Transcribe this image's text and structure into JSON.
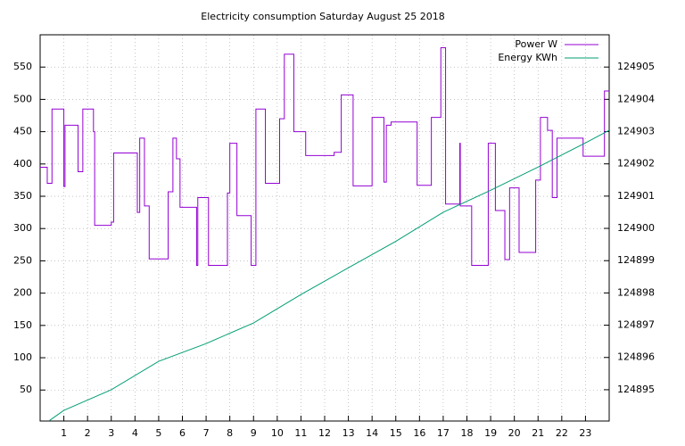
{
  "chart_data": {
    "type": "line",
    "title": "Electricity consumption Saturday August 25 2018",
    "xlim": [
      0,
      24
    ],
    "xticks": [
      1,
      2,
      3,
      4,
      5,
      6,
      7,
      8,
      9,
      10,
      11,
      12,
      13,
      14,
      15,
      16,
      17,
      18,
      19,
      20,
      21,
      22,
      23
    ],
    "ylim": [
      2,
      600
    ],
    "yticks": [
      50,
      100,
      150,
      200,
      250,
      300,
      350,
      400,
      450,
      500,
      550
    ],
    "y2lim": [
      124894.03,
      124906
    ],
    "y2ticks": [
      124895,
      124896,
      124897,
      124898,
      124899,
      124900,
      124901,
      124902,
      124903,
      124904,
      124905
    ],
    "grid": true,
    "legend": "top right",
    "series": [
      {
        "name": "Power W",
        "color": "#9400d3",
        "x": [
          0,
          0.3,
          0.3,
          0.5,
          0.5,
          1.0,
          1.0,
          1.05,
          1.05,
          1.6,
          1.6,
          1.8,
          1.8,
          2.25,
          2.25,
          2.3,
          2.3,
          3.0,
          3.0,
          3.1,
          3.1,
          4.1,
          4.1,
          4.2,
          4.2,
          4.4,
          4.4,
          4.6,
          4.6,
          5.4,
          5.4,
          5.6,
          5.6,
          5.75,
          5.75,
          5.9,
          5.9,
          6.6,
          6.6,
          6.65,
          6.65,
          7.1,
          7.1,
          7.9,
          7.9,
          8.0,
          8.0,
          8.3,
          8.3,
          8.9,
          8.9,
          9.1,
          9.1,
          9.5,
          9.5,
          10.1,
          10.1,
          10.3,
          10.3,
          10.7,
          10.7,
          11.2,
          11.2,
          12.4,
          12.4,
          12.7,
          12.7,
          13.2,
          13.2,
          14.0,
          14.0,
          14.5,
          14.5,
          14.6,
          14.6,
          14.8,
          14.8,
          15.9,
          15.9,
          16.5,
          16.5,
          16.9,
          16.9,
          17.1,
          17.1,
          17.7,
          17.7,
          17.72,
          17.72,
          18.2,
          18.2,
          18.9,
          18.9,
          19.2,
          19.2,
          19.6,
          19.6,
          19.8,
          19.8,
          20.2,
          20.2,
          20.9,
          20.9,
          21.1,
          21.1,
          21.4,
          21.4,
          21.6,
          21.6,
          21.8,
          21.8,
          22.9,
          22.9,
          23.8,
          23.8,
          24
        ],
        "values": [
          395,
          395,
          370,
          370,
          485,
          485,
          365,
          365,
          460,
          460,
          388,
          388,
          485,
          485,
          450,
          450,
          305,
          305,
          310,
          310,
          417,
          417,
          325,
          325,
          440,
          440,
          335,
          335,
          253,
          253,
          357,
          357,
          440,
          440,
          408,
          408,
          333,
          333,
          243,
          243,
          348,
          348,
          243,
          243,
          355,
          355,
          432,
          432,
          320,
          320,
          243,
          243,
          485,
          485,
          370,
          370,
          470,
          470,
          570,
          570,
          450,
          450,
          413,
          413,
          418,
          418,
          507,
          507,
          366,
          366,
          472,
          472,
          372,
          372,
          460,
          460,
          465,
          465,
          367,
          367,
          472,
          472,
          580,
          580,
          338,
          338,
          432,
          432,
          335,
          335,
          243,
          243,
          432,
          432,
          328,
          328,
          252,
          252,
          363,
          363,
          263,
          263,
          375,
          375,
          472,
          472,
          452,
          452,
          348,
          348,
          440,
          440,
          412,
          412,
          513,
          513
        ]
      },
      {
        "name": "Energy KWh",
        "color": "#009e73",
        "axis": "y2",
        "x": [
          0.4,
          1,
          3,
          5,
          7,
          9,
          11,
          13,
          15,
          17,
          19,
          21,
          23,
          24
        ],
        "values": [
          124894.05,
          124894.36,
          124895.0,
          124895.88,
          124896.43,
          124897.07,
          124897.95,
          124898.78,
          124899.6,
          124900.5,
          124901.18,
          124901.9,
          124902.65,
          124903.04
        ]
      }
    ]
  }
}
